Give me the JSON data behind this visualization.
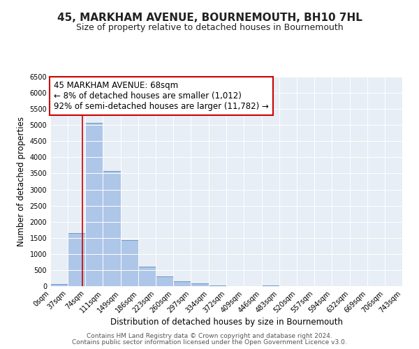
{
  "title": "45, MARKHAM AVENUE, BOURNEMOUTH, BH10 7HL",
  "subtitle": "Size of property relative to detached houses in Bournemouth",
  "xlabel": "Distribution of detached houses by size in Bournemouth",
  "ylabel": "Number of detached properties",
  "bin_edges": [
    0,
    37,
    74,
    111,
    149,
    186,
    223,
    260,
    297,
    334,
    372,
    409,
    446,
    483,
    520,
    557,
    594,
    632,
    669,
    706,
    743
  ],
  "bar_values": [
    75,
    1650,
    5080,
    3580,
    1420,
    610,
    300,
    145,
    90,
    30,
    0,
    0,
    30,
    0,
    0,
    0,
    0,
    0,
    0,
    0
  ],
  "bar_color": "#aec6e8",
  "bar_edge_color": "#5a8fc0",
  "property_size": 68,
  "red_line_color": "#cc0000",
  "ylim": [
    0,
    6500
  ],
  "yticks": [
    0,
    500,
    1000,
    1500,
    2000,
    2500,
    3000,
    3500,
    4000,
    4500,
    5000,
    5500,
    6000,
    6500
  ],
  "annotation_line1": "45 MARKHAM AVENUE: 68sqm",
  "annotation_line2": "← 8% of detached houses are smaller (1,012)",
  "annotation_line3": "92% of semi-detached houses are larger (11,782) →",
  "annotation_box_color": "#ffffff",
  "annotation_box_edge": "#cc0000",
  "background_color": "#e8eef5",
  "footer_line1": "Contains HM Land Registry data © Crown copyright and database right 2024.",
  "footer_line2": "Contains public sector information licensed under the Open Government Licence v3.0.",
  "title_fontsize": 11,
  "subtitle_fontsize": 9,
  "axis_label_fontsize": 8.5,
  "tick_fontsize": 7,
  "annotation_fontsize": 8.5,
  "footer_fontsize": 6.5
}
